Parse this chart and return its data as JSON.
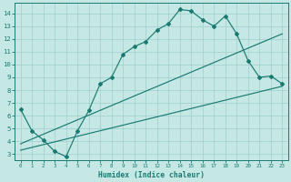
{
  "bg_color": "#c5e8e5",
  "grid_color": "#9ecece",
  "line_color": "#1a7a72",
  "xlabel": "Humidex (Indice chaleur)",
  "xlim": [
    -0.5,
    23.5
  ],
  "ylim": [
    2.5,
    14.8
  ],
  "xticks": [
    0,
    1,
    2,
    3,
    4,
    5,
    6,
    7,
    8,
    9,
    10,
    11,
    12,
    13,
    14,
    15,
    16,
    17,
    18,
    19,
    20,
    21,
    22,
    23
  ],
  "yticks": [
    3,
    4,
    5,
    6,
    7,
    8,
    9,
    10,
    11,
    12,
    13,
    14
  ],
  "line1_x": [
    0,
    1,
    2,
    3,
    4,
    5,
    6,
    7,
    8,
    9,
    10,
    11,
    12,
    13,
    14,
    15,
    16,
    17,
    18,
    19,
    20,
    21,
    22,
    23
  ],
  "line1_y": [
    6.5,
    4.8,
    4.1,
    3.2,
    2.8,
    4.8,
    6.4,
    8.5,
    9.0,
    10.8,
    11.4,
    11.8,
    12.7,
    13.2,
    14.3,
    14.2,
    13.5,
    13.0,
    13.8,
    12.4,
    10.3,
    9.0,
    9.1,
    8.5
  ],
  "line2_x": [
    0,
    23
  ],
  "line2_y": [
    3.8,
    12.4
  ],
  "line3_x": [
    0,
    23
  ],
  "line3_y": [
    3.3,
    8.3
  ]
}
